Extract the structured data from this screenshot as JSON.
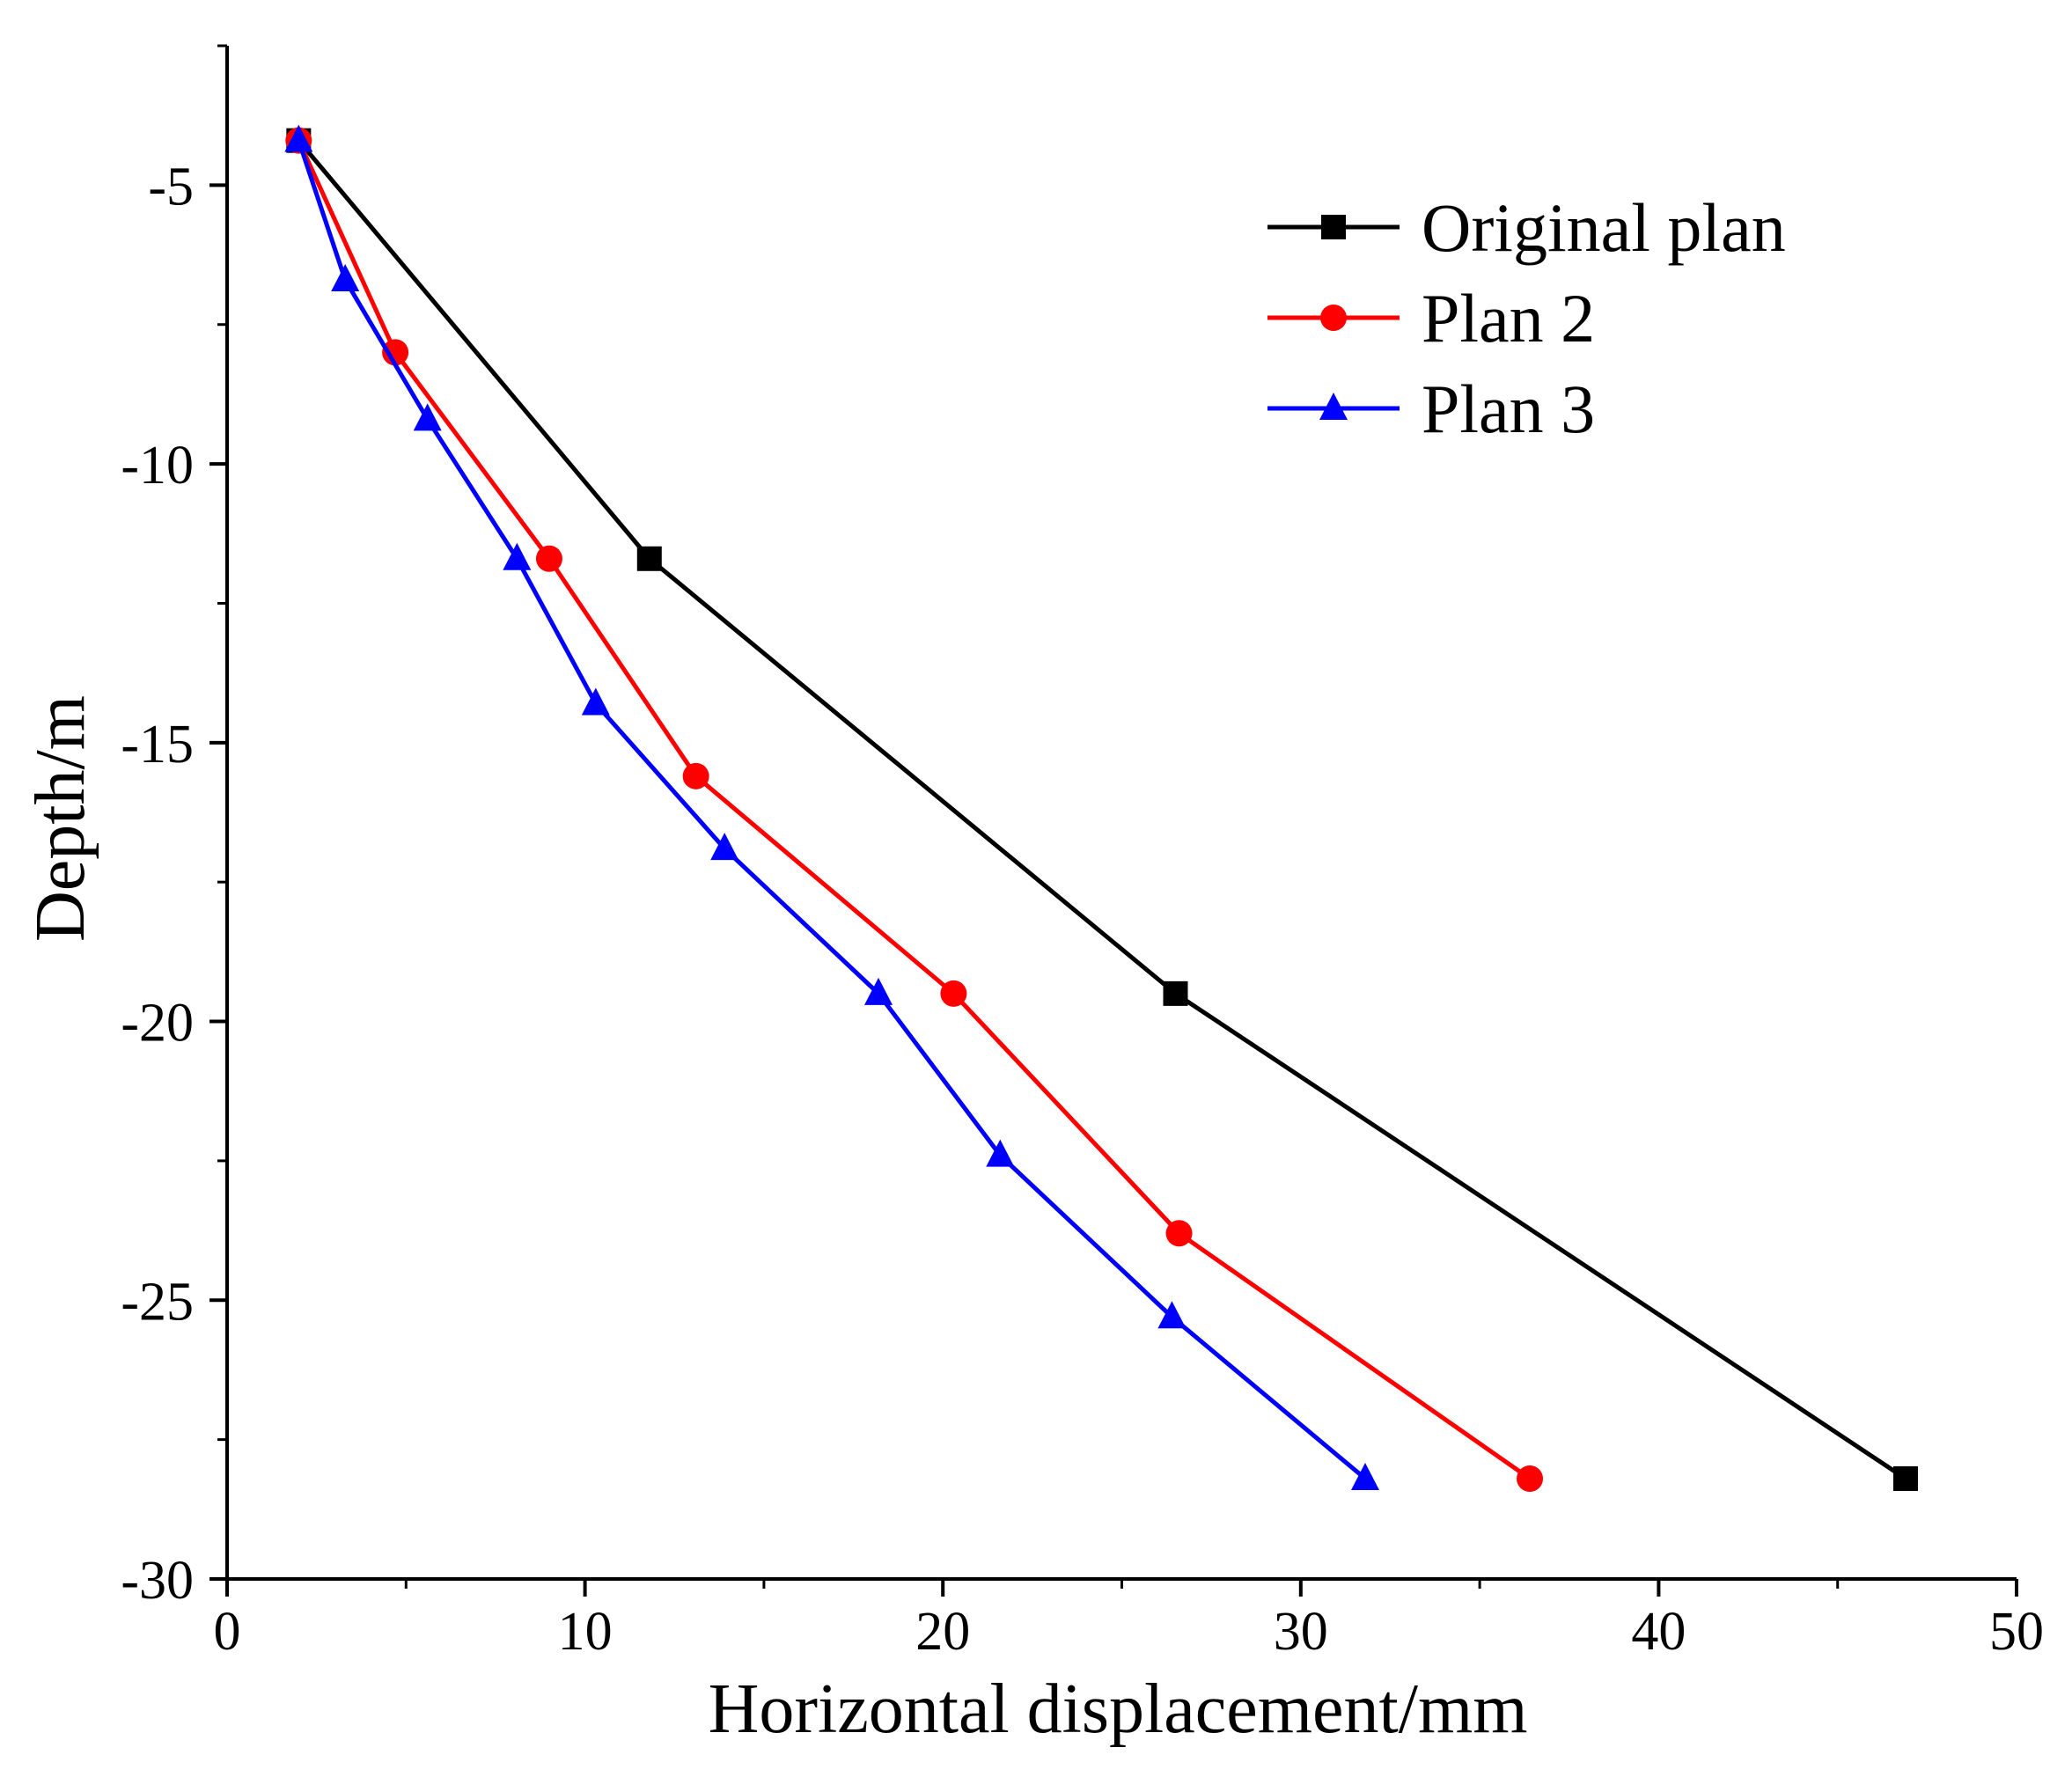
{
  "chart_data": {
    "type": "line",
    "title": "",
    "xlabel": "Horizontal displacement/mm",
    "ylabel": "Depth/m",
    "xlim": [
      0,
      50
    ],
    "ylim": [
      -30,
      -2.5
    ],
    "xticks": [
      0,
      10,
      20,
      30,
      40,
      50
    ],
    "yticks": [
      -5,
      -10,
      -15,
      -20,
      -25,
      -30
    ],
    "grid": false,
    "legend_position": "top-right",
    "series": [
      {
        "name": "Original plan",
        "color": "#000000",
        "marker": "square",
        "x": [
          2.0,
          11.8,
          26.5,
          46.9
        ],
        "y": [
          -4.2,
          -11.7,
          -19.5,
          -28.2
        ]
      },
      {
        "name": "Plan 2",
        "color": "#ff0000",
        "marker": "circle",
        "x": [
          2.0,
          4.7,
          9.0,
          13.1,
          20.3,
          26.6,
          36.4
        ],
        "y": [
          -4.2,
          -8.0,
          -11.7,
          -15.6,
          -19.5,
          -23.8,
          -28.2
        ]
      },
      {
        "name": "Plan 3",
        "color": "#0000ff",
        "marker": "triangle",
        "x": [
          2.0,
          3.3,
          5.6,
          8.1,
          10.3,
          13.9,
          18.2,
          21.6,
          26.4,
          31.8
        ],
        "y": [
          -4.2,
          -6.7,
          -9.2,
          -11.7,
          -14.3,
          -16.9,
          -19.5,
          -22.4,
          -25.3,
          -28.2
        ]
      }
    ]
  }
}
